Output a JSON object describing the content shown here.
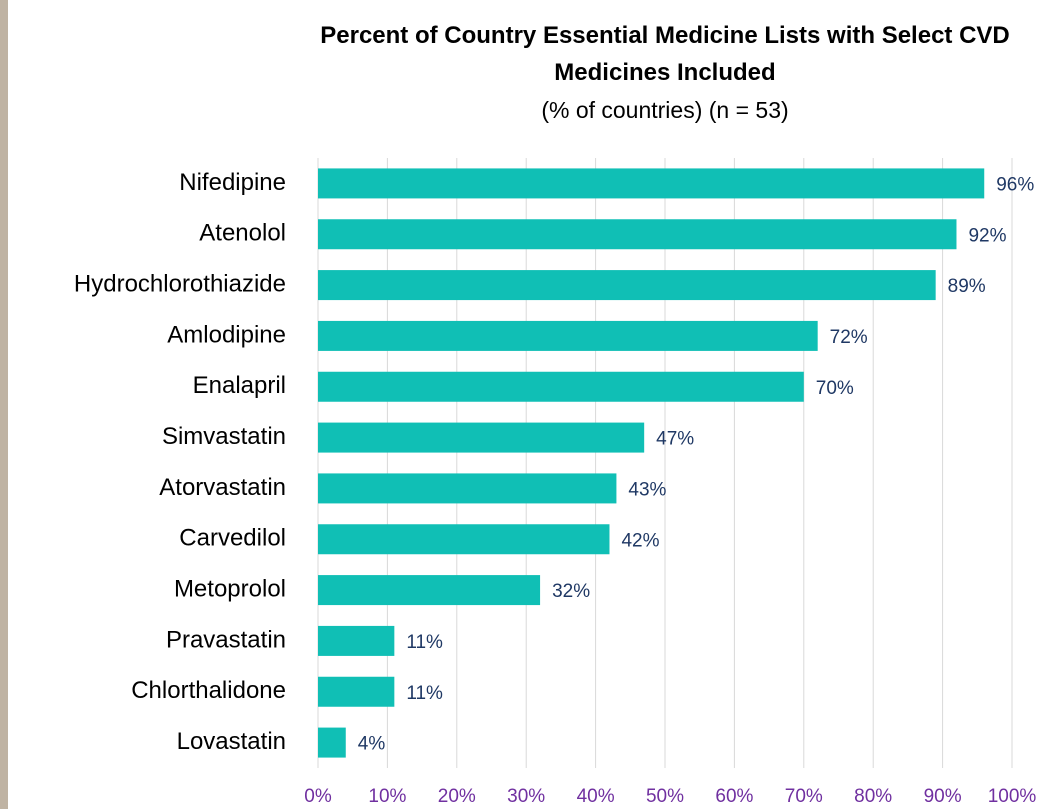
{
  "chart_data": {
    "type": "bar",
    "orientation": "horizontal",
    "title": "Percent of Country Essential Medicine Lists with Select CVD Medicines Included",
    "subtitle": "(% of countries) (n = 53)",
    "categories": [
      "Nifedipine",
      "Atenolol",
      "Hydrochlorothiazide",
      "Amlodipine",
      "Enalapril",
      "Simvastatin",
      "Atorvastatin",
      "Carvedilol",
      "Metoprolol",
      "Pravastatin",
      "Chlorthalidone",
      "Lovastatin"
    ],
    "values": [
      96,
      92,
      89,
      72,
      70,
      47,
      43,
      42,
      32,
      11,
      11,
      4
    ],
    "value_labels": [
      "96%",
      "92%",
      "89%",
      "72%",
      "70%",
      "47%",
      "43%",
      "42%",
      "32%",
      "11%",
      "11%",
      "4%"
    ],
    "color": "#10bfb5",
    "xlim": [
      0,
      100
    ],
    "xticks": [
      {
        "value": 0,
        "label": "0%"
      },
      {
        "value": 10,
        "label": "10%"
      },
      {
        "value": 20,
        "label": "20%"
      },
      {
        "value": 30,
        "label": "30%"
      },
      {
        "value": 40,
        "label": "40%"
      },
      {
        "value": 50,
        "label": "50%"
      },
      {
        "value": 60,
        "label": "60%"
      },
      {
        "value": 70,
        "label": "70%"
      },
      {
        "value": 80,
        "label": "80%"
      },
      {
        "value": 90,
        "label": "90%"
      },
      {
        "value": 100,
        "label": "100%"
      }
    ],
    "grid": true
  }
}
